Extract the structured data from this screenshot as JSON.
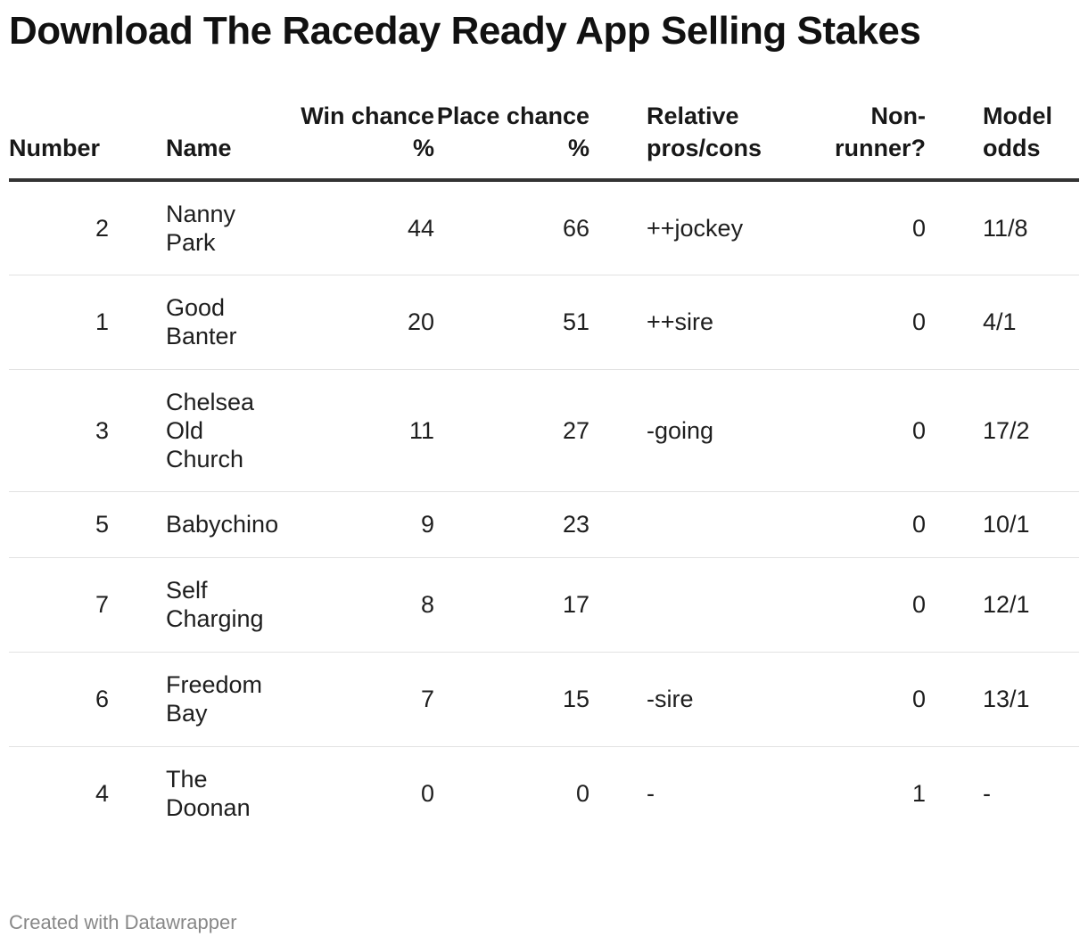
{
  "title": "Download The Raceday Ready App Selling Stakes",
  "footer": "Created with Datawrapper",
  "chart_data": {
    "type": "table",
    "title": "Download The Raceday Ready App Selling Stakes",
    "columns": [
      {
        "key": "number",
        "label": "Number",
        "align": "right"
      },
      {
        "key": "name",
        "label": "Name",
        "align": "left"
      },
      {
        "key": "win",
        "label": "Win chance %",
        "align": "right"
      },
      {
        "key": "place",
        "label": "Place chance %",
        "align": "right"
      },
      {
        "key": "pros_cons",
        "label": "Relative pros/cons",
        "align": "left"
      },
      {
        "key": "non_runner",
        "label": "Non-runner?",
        "align": "right"
      },
      {
        "key": "odds",
        "label": "Model odds",
        "align": "left"
      }
    ],
    "rows": [
      {
        "number": "2",
        "name": "Nanny Park",
        "win": "44",
        "place": "66",
        "pros_cons": "++jockey",
        "non_runner": "0",
        "odds": "11/8"
      },
      {
        "number": "1",
        "name": "Good Banter",
        "win": "20",
        "place": "51",
        "pros_cons": "++sire",
        "non_runner": "0",
        "odds": "4/1"
      },
      {
        "number": "3",
        "name": "Chelsea Old Church",
        "win": "11",
        "place": "27",
        "pros_cons": "-going",
        "non_runner": "0",
        "odds": "17/2"
      },
      {
        "number": "5",
        "name": "Babychino",
        "win": "9",
        "place": "23",
        "pros_cons": "",
        "non_runner": "0",
        "odds": "10/1"
      },
      {
        "number": "7",
        "name": "Self Charging",
        "win": "8",
        "place": "17",
        "pros_cons": "",
        "non_runner": "0",
        "odds": "12/1"
      },
      {
        "number": "6",
        "name": "Freedom Bay",
        "win": "7",
        "place": "15",
        "pros_cons": "-sire",
        "non_runner": "0",
        "odds": "13/1"
      },
      {
        "number": "4",
        "name": "The Doonan",
        "win": "0",
        "place": "0",
        "pros_cons": "-",
        "non_runner": "1",
        "odds": "-"
      }
    ]
  }
}
